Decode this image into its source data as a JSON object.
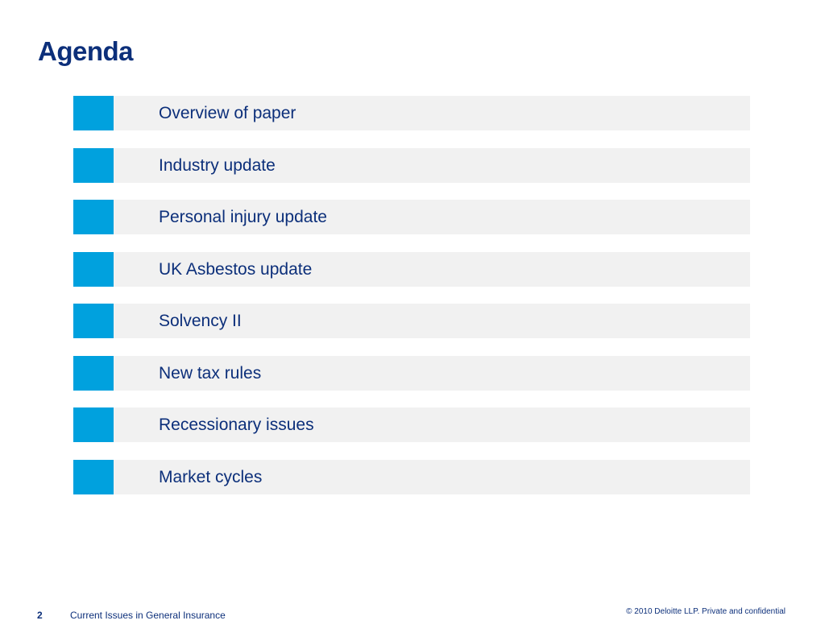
{
  "slide": {
    "title": "Agenda"
  },
  "agenda": {
    "items": [
      {
        "label": "Overview of paper"
      },
      {
        "label": "Industry update"
      },
      {
        "label": "Personal injury update"
      },
      {
        "label": "UK Asbestos update"
      },
      {
        "label": "Solvency II"
      },
      {
        "label": "New tax rules"
      },
      {
        "label": "Recessionary issues"
      },
      {
        "label": "Market cycles"
      }
    ]
  },
  "footer": {
    "page_number": "2",
    "document_title": "Current Issues in General Insurance",
    "copyright": "© 2010 Deloitte LLP. Private and confidential"
  },
  "colors": {
    "title_text": "#0c2f7a",
    "marker": "#00a1de",
    "item_background": "#f1f1f1"
  }
}
